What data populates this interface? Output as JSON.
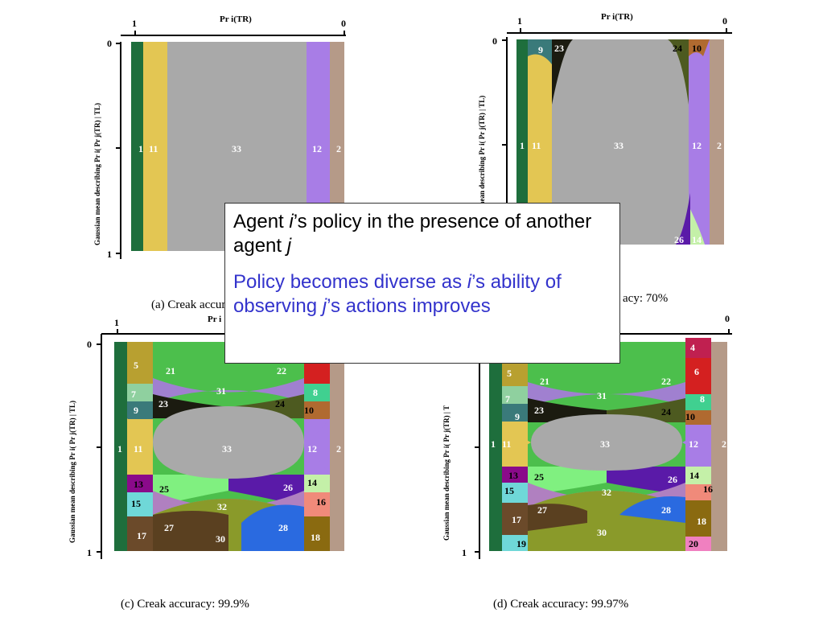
{
  "panels": {
    "a": {
      "top_axis_label": "Pr i(TR)",
      "top_left_tick": "1",
      "top_right_tick": "0",
      "y_axis_label": "Gaussian mean describing Pr i( Pr j(TR) | TL)",
      "y_top_tick": "0",
      "y_bottom_tick": "1",
      "caption": "(a) Creak accuracy: ",
      "regions": [
        "1",
        "11",
        "33",
        "12",
        "2"
      ]
    },
    "b": {
      "top_axis_label": "Pr i(TR)",
      "top_left_tick": "1",
      "top_right_tick": "0",
      "y_axis_label": "mean describing Pr i( Pr j(TR) | TL)",
      "y_top_tick": "0",
      "caption": "acy: 70%",
      "regions": [
        "1",
        "11",
        "9",
        "23",
        "33",
        "24",
        "10",
        "12",
        "2",
        "26",
        "14"
      ]
    },
    "c": {
      "top_axis_label": "Pr i",
      "top_left_tick": "1",
      "y_axis_label": "Gaussian mean describing Pr i( Pr j(TR) | TL)",
      "y_top_tick": "0",
      "y_bottom_tick": "1",
      "caption": "(c) Creak accuracy: 99.9%",
      "regions": [
        "5",
        "21",
        "22",
        "7",
        "31",
        "8",
        "9",
        "23",
        "24",
        "10",
        "1",
        "11",
        "33",
        "12",
        "2",
        "13",
        "25",
        "26",
        "14",
        "15",
        "32",
        "16",
        "17",
        "27",
        "30",
        "28",
        "18"
      ]
    },
    "d": {
      "top_axis_label": "",
      "top_right_tick": "0",
      "y_axis_label": "Gaussian mean describing Pr i( Pr j(TR) | T",
      "y_bottom_tick": "1",
      "caption": "(d) Creak accuracy: 99.97%",
      "regions": [
        "4",
        "5",
        "6",
        "21",
        "22",
        "7",
        "31",
        "8",
        "9",
        "23",
        "24",
        "10",
        "1",
        "11",
        "33",
        "12",
        "2",
        "13",
        "14",
        "25",
        "16",
        "15",
        "32",
        "26",
        "17",
        "27",
        "28",
        "18",
        "30",
        "19",
        "20"
      ]
    }
  },
  "callout": {
    "line1_a": "Agent ",
    "line1_i": "i",
    "line1_b": "’s policy in the presence of another agent ",
    "line1_j": "j",
    "line2_a": "Policy becomes diverse as ",
    "line2_i": "i",
    "line2_b": "’s ability of observing ",
    "line2_j": "j",
    "line2_c": "’s actions improves"
  },
  "colors": {
    "dark_green": "#1e6e3c",
    "yellow": "#e3c653",
    "gray": "#a9a9a9",
    "purple": "#a87de6",
    "tan": "#b59a88",
    "text_blue": "#3333cc"
  }
}
